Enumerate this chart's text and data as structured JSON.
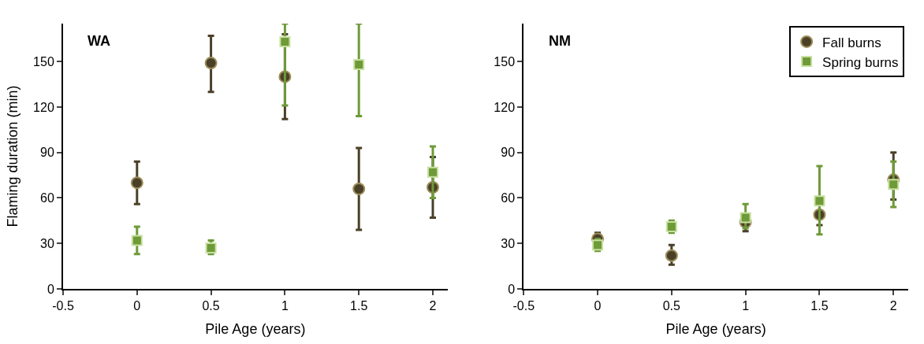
{
  "chart_data": [
    {
      "type": "scatter",
      "title": "WA",
      "xlabel": "Pile Age (years)",
      "ylabel": "Flaming duration (min)",
      "xlim": [
        -0.5,
        2.1
      ],
      "xticks": [
        -0.5,
        0,
        0.5,
        1,
        1.5,
        2
      ],
      "ylim": [
        0,
        175
      ],
      "yticks": [
        0,
        30,
        60,
        90,
        120,
        150
      ],
      "series": [
        {
          "color": "#4a4028",
          "marker": "circle",
          "x": [
            0,
            0.5,
            1,
            1.5,
            2
          ],
          "values": [
            70,
            149,
            140,
            66,
            67
          ],
          "errors": [
            [
              56,
              84
            ],
            [
              130,
              167
            ],
            [
              112,
              168
            ],
            [
              39,
              93
            ],
            [
              47,
              87
            ]
          ]
        },
        {
          "color": "#6e9a38",
          "marker": "square",
          "x": [
            0,
            0.5,
            1,
            1.5,
            2
          ],
          "values": [
            32,
            27,
            163,
            148,
            77
          ],
          "errors": [
            [
              23,
              41
            ],
            [
              23,
              32
            ],
            [
              121,
              175
            ],
            [
              114,
              175
            ],
            [
              60,
              94
            ]
          ]
        }
      ]
    },
    {
      "type": "scatter",
      "title": "NM",
      "xlabel": "Pile Age (years)",
      "xlim": [
        -0.5,
        2.1
      ],
      "xticks": [
        -0.5,
        0,
        0.5,
        1,
        1.5,
        2
      ],
      "ylim": [
        0,
        175
      ],
      "yticks": [
        0,
        30,
        60,
        90,
        120,
        150
      ],
      "legend": "top right",
      "series": [
        {
          "name": "Fall burns",
          "color": "#4a4028",
          "marker": "circle",
          "x": [
            0,
            0.5,
            1,
            1.5,
            2
          ],
          "values": [
            33,
            22,
            44,
            49,
            72
          ],
          "errors": [
            [
              28,
              37
            ],
            [
              16,
              29
            ],
            [
              38,
              48
            ],
            [
              42,
              56
            ],
            [
              59,
              90
            ]
          ]
        },
        {
          "name": "Spring burns",
          "color": "#6e9a38",
          "marker": "square",
          "x": [
            0,
            0.5,
            1,
            1.5,
            2
          ],
          "values": [
            29,
            41,
            47,
            58,
            69
          ],
          "errors": [
            [
              25,
              33
            ],
            [
              37,
              45
            ],
            [
              40,
              56
            ],
            [
              36,
              81
            ],
            [
              54,
              84
            ]
          ]
        }
      ]
    }
  ]
}
